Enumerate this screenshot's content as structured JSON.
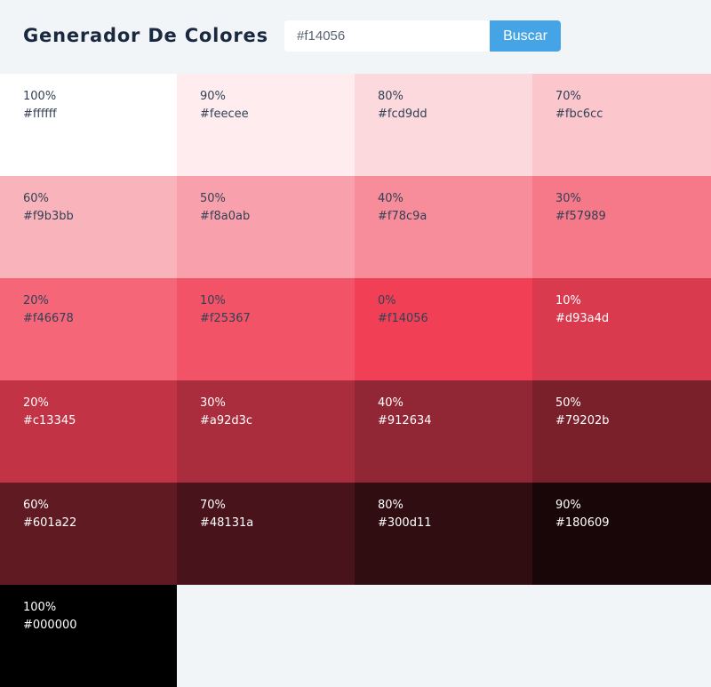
{
  "header": {
    "title": "Generador De Colores",
    "search_value": "#f14056",
    "search_button_label": "Buscar"
  },
  "swatches": [
    {
      "percent": "100%",
      "hex": "#ffffff",
      "tone": "dark"
    },
    {
      "percent": "90%",
      "hex": "#feecee",
      "tone": "dark"
    },
    {
      "percent": "80%",
      "hex": "#fcd9dd",
      "tone": "dark"
    },
    {
      "percent": "70%",
      "hex": "#fbc6cc",
      "tone": "dark"
    },
    {
      "percent": "60%",
      "hex": "#f9b3bb",
      "tone": "dark"
    },
    {
      "percent": "50%",
      "hex": "#f8a0ab",
      "tone": "dark"
    },
    {
      "percent": "40%",
      "hex": "#f78c9a",
      "tone": "dark"
    },
    {
      "percent": "30%",
      "hex": "#f57989",
      "tone": "dark"
    },
    {
      "percent": "20%",
      "hex": "#f46678",
      "tone": "dark"
    },
    {
      "percent": "10%",
      "hex": "#f25367",
      "tone": "dark"
    },
    {
      "percent": "0%",
      "hex": "#f14056",
      "tone": "dark"
    },
    {
      "percent": "10%",
      "hex": "#d93a4d",
      "tone": "light"
    },
    {
      "percent": "20%",
      "hex": "#c13345",
      "tone": "light"
    },
    {
      "percent": "30%",
      "hex": "#a92d3c",
      "tone": "light"
    },
    {
      "percent": "40%",
      "hex": "#912634",
      "tone": "light"
    },
    {
      "percent": "50%",
      "hex": "#79202b",
      "tone": "light"
    },
    {
      "percent": "60%",
      "hex": "#601a22",
      "tone": "light"
    },
    {
      "percent": "70%",
      "hex": "#48131a",
      "tone": "light"
    },
    {
      "percent": "80%",
      "hex": "#300d11",
      "tone": "light"
    },
    {
      "percent": "90%",
      "hex": "#180609",
      "tone": "light"
    },
    {
      "percent": "100%",
      "hex": "#000000",
      "tone": "light"
    }
  ],
  "colors": {
    "page_background": "#f1f5f8",
    "title_text": "#1b2940",
    "button_background": "#45a4e6",
    "dark_text": "#334155",
    "light_text": "#ffffff"
  }
}
